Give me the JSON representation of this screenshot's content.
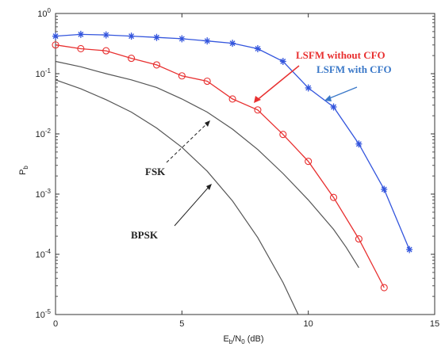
{
  "chart_data": {
    "type": "line",
    "title": "",
    "xlabel": "Eb/N0 (dB)",
    "ylabel": "Pb",
    "x_scale": "linear",
    "y_scale": "log",
    "xlim": [
      0,
      15
    ],
    "ylim": [
      1e-05,
      1
    ],
    "grid": false,
    "x_ticks": [
      0,
      5,
      10,
      15
    ],
    "y_ticks": [
      {
        "value": 1,
        "base": "10",
        "exp": "0"
      },
      {
        "value": 0.1,
        "base": "10",
        "exp": "-1"
      },
      {
        "value": 0.01,
        "base": "10",
        "exp": "-2"
      },
      {
        "value": 0.001,
        "base": "10",
        "exp": "-3"
      },
      {
        "value": 0.0001,
        "base": "10",
        "exp": "-4"
      },
      {
        "value": 1e-05,
        "base": "10",
        "exp": "-5"
      }
    ],
    "series": [
      {
        "name": "LSFM with CFO",
        "color": "#3355dd",
        "marker": "star",
        "x": [
          0,
          1,
          2,
          3,
          4,
          5,
          6,
          7,
          8,
          9,
          10,
          11,
          12,
          13,
          14
        ],
        "y": [
          0.42,
          0.45,
          0.44,
          0.42,
          0.4,
          0.38,
          0.35,
          0.32,
          0.26,
          0.16,
          0.058,
          0.028,
          0.0068,
          0.0012,
          0.00012
        ]
      },
      {
        "name": "LSFM without CFO",
        "color": "#e83030",
        "marker": "circle",
        "x": [
          0,
          1,
          2,
          3,
          4,
          5,
          6,
          7,
          8,
          9,
          10,
          11,
          12,
          13
        ],
        "y": [
          0.3,
          0.26,
          0.24,
          0.18,
          0.14,
          0.092,
          0.075,
          0.038,
          0.025,
          0.0098,
          0.0035,
          0.00088,
          0.00018,
          2.8e-05
        ]
      },
      {
        "name": "FSK",
        "color": "#555555",
        "marker": "none",
        "x": [
          0,
          1,
          2,
          3,
          4,
          5,
          6,
          7,
          8,
          9,
          10,
          11,
          11.5,
          12
        ],
        "y": [
          0.16,
          0.13,
          0.1,
          0.079,
          0.059,
          0.038,
          0.023,
          0.012,
          0.0055,
          0.0022,
          0.0008,
          0.00026,
          0.00013,
          6e-05
        ]
      },
      {
        "name": "BPSK",
        "color": "#555555",
        "marker": "none",
        "x": [
          0,
          1,
          2,
          3,
          4,
          5,
          6,
          7,
          8,
          9,
          9.6
        ],
        "y": [
          0.079,
          0.056,
          0.037,
          0.023,
          0.0125,
          0.006,
          0.0024,
          0.00077,
          0.00019,
          3.4e-05,
          1e-05
        ]
      }
    ],
    "annotations": [
      {
        "text": "LSFM without CFO",
        "color": "#e83030"
      },
      {
        "text": "LSFM with CFO",
        "color": "#3a78c8"
      },
      {
        "text": "FSK",
        "color": "#222222"
      },
      {
        "text": "BPSK",
        "color": "#222222"
      }
    ]
  }
}
